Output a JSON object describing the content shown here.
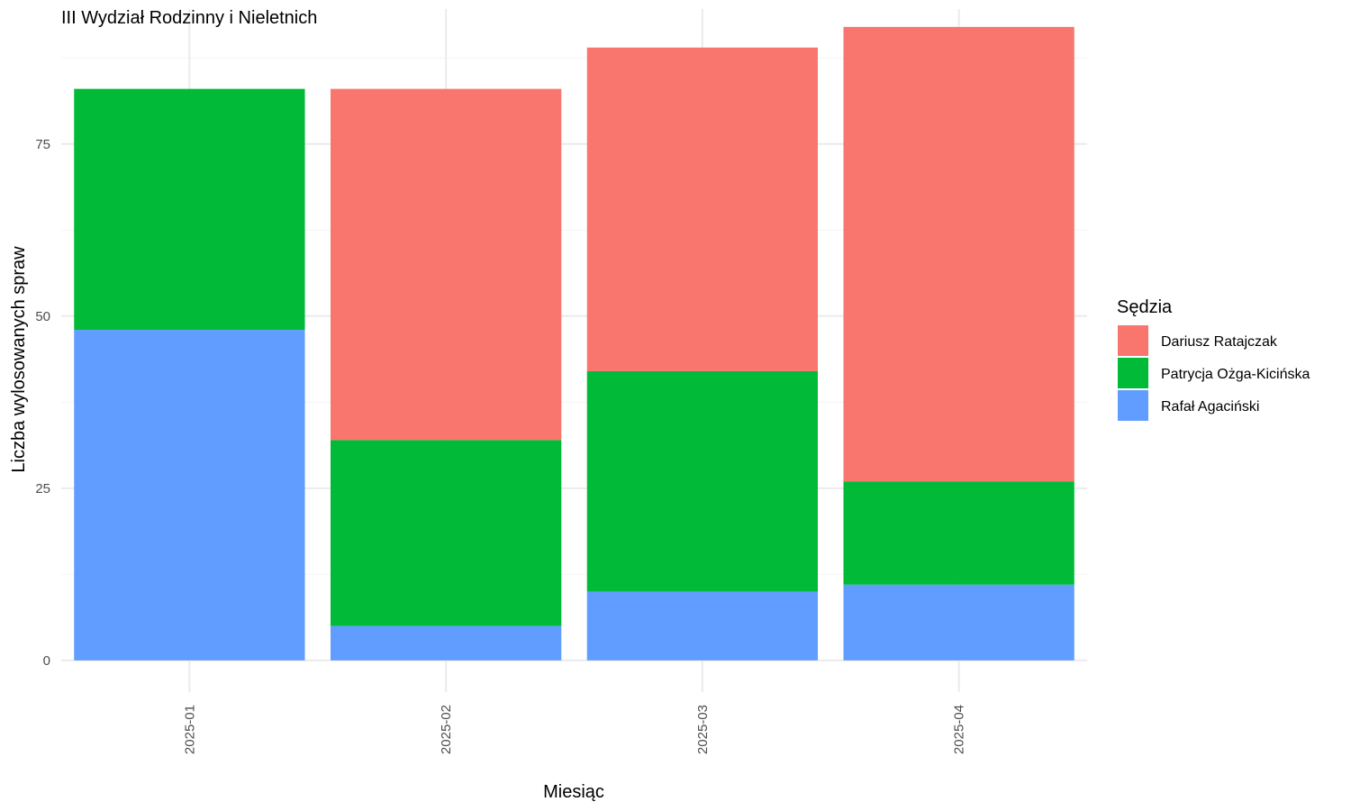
{
  "chart_data": {
    "type": "bar",
    "stacked": true,
    "title": "III Wydział Rodzinny i Nieletnich",
    "xlabel": "Miesiąc",
    "ylabel": "Liczba wylosowanych spraw",
    "categories": [
      "2025-01",
      "2025-02",
      "2025-03",
      "2025-04"
    ],
    "ylim": [
      0,
      92
    ],
    "yticks": [
      0,
      25,
      50,
      75
    ],
    "grid": true,
    "legend": {
      "title": "Sędzia",
      "position": "right"
    },
    "series": [
      {
        "name": "Rafał Agaciński",
        "color": "#619CFF",
        "values": [
          48,
          5,
          10,
          11
        ]
      },
      {
        "name": "Patrycja Ożga-Kicińska",
        "color": "#00BA38",
        "values": [
          35,
          27,
          32,
          15
        ]
      },
      {
        "name": "Dariusz Ratajczak",
        "color": "#F8766D",
        "values": [
          0,
          51,
          47,
          66
        ]
      }
    ],
    "legend_order": [
      "Dariusz Ratajczak",
      "Patrycja Ożga-Kicińska",
      "Rafał Agaciński"
    ]
  }
}
